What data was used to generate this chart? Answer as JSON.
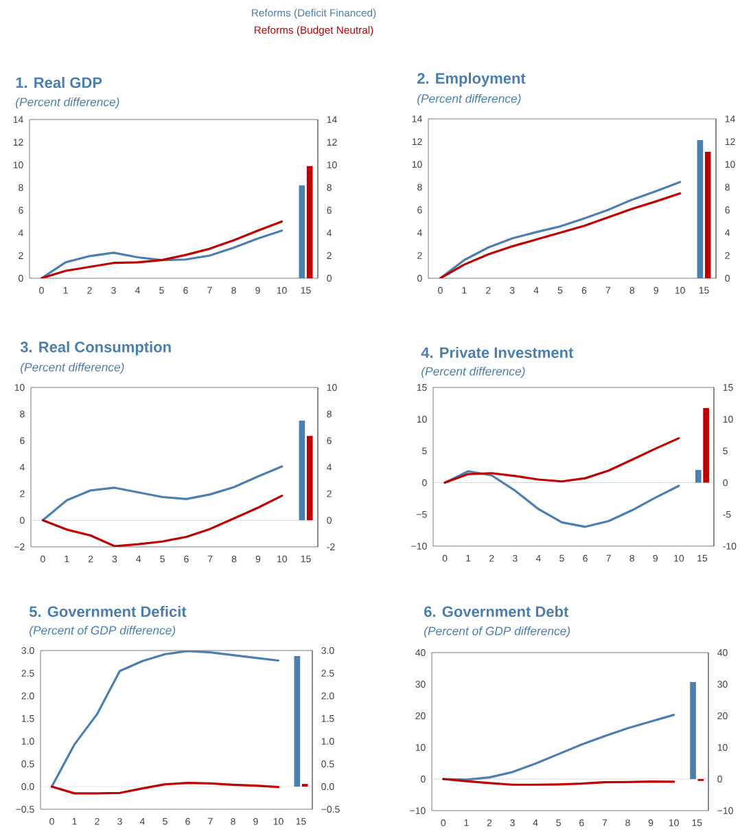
{
  "chart_data": [
    {
      "type": "line",
      "title": "1. Real GDP",
      "subtitle": "(Percent difference)",
      "legend": "top",
      "categories": [
        "0",
        "1",
        "2",
        "3",
        "4",
        "5",
        "6",
        "7",
        "8",
        "9",
        "10",
        "15"
      ],
      "series": [
        {
          "name": "Reforms (Deficit Financed)",
          "color": "#4a7fb0",
          "values": [
            0,
            1.4,
            1.95,
            2.25,
            1.85,
            1.6,
            1.65,
            2.0,
            2.7,
            3.5,
            4.2,
            null
          ]
        },
        {
          "name": "Reforms (Budget Neutral)",
          "color": "#c00000",
          "values": [
            0,
            0.65,
            1.0,
            1.35,
            1.4,
            1.6,
            2.05,
            2.6,
            3.35,
            4.2,
            5.0,
            null
          ]
        },
        {
          "type": "bar",
          "color": "#4a7fb0",
          "values": [
            null,
            null,
            null,
            null,
            null,
            null,
            null,
            null,
            null,
            null,
            null,
            8.2
          ]
        },
        {
          "type": "bar",
          "color": "#c00000",
          "values": [
            null,
            null,
            null,
            null,
            null,
            null,
            null,
            null,
            null,
            null,
            null,
            9.9
          ]
        }
      ],
      "ylim": [
        0,
        14
      ],
      "yticks": [
        0,
        2,
        4,
        6,
        8,
        10,
        12,
        14
      ],
      "y2lim": [
        0,
        14
      ],
      "y2ticks": [
        0,
        2,
        4,
        6,
        8,
        10,
        12,
        14
      ]
    },
    {
      "type": "line",
      "title": "2. Employment",
      "subtitle": "(Percent difference)",
      "categories": [
        "0",
        "1",
        "2",
        "3",
        "4",
        "5",
        "6",
        "7",
        "8",
        "9",
        "10",
        "15"
      ],
      "series": [
        {
          "color": "#4a7fb0",
          "values": [
            0,
            1.6,
            2.7,
            3.5,
            4.05,
            4.55,
            5.25,
            6.0,
            6.9,
            7.65,
            8.45,
            null
          ]
        },
        {
          "color": "#c00000",
          "values": [
            0,
            1.2,
            2.1,
            2.8,
            3.4,
            4.0,
            4.6,
            5.35,
            6.1,
            6.75,
            7.45,
            null
          ]
        },
        {
          "type": "bar",
          "color": "#4a7fb0",
          "values": [
            null,
            null,
            null,
            null,
            null,
            null,
            null,
            null,
            null,
            null,
            null,
            12.15
          ]
        },
        {
          "type": "bar",
          "color": "#c00000",
          "values": [
            null,
            null,
            null,
            null,
            null,
            null,
            null,
            null,
            null,
            null,
            null,
            11.1
          ]
        }
      ],
      "ylim": [
        0,
        14
      ],
      "yticks": [
        0,
        2,
        4,
        6,
        8,
        10,
        12,
        14
      ],
      "y2lim": [
        0,
        14
      ],
      "y2ticks": [
        0,
        2,
        4,
        6,
        8,
        10,
        12,
        14
      ]
    },
    {
      "type": "line",
      "title": "3. Real Consumption",
      "subtitle": "(Percent difference)",
      "categories": [
        "0",
        "1",
        "2",
        "3",
        "4",
        "5",
        "6",
        "7",
        "8",
        "9",
        "10",
        "15"
      ],
      "series": [
        {
          "color": "#4a7fb0",
          "values": [
            0,
            1.5,
            2.25,
            2.45,
            2.1,
            1.75,
            1.6,
            1.95,
            2.5,
            3.3,
            4.05,
            null
          ]
        },
        {
          "color": "#c00000",
          "values": [
            0,
            -0.7,
            -1.15,
            -1.95,
            -1.8,
            -1.6,
            -1.25,
            -0.65,
            0.15,
            0.95,
            1.85,
            null
          ]
        },
        {
          "type": "bar",
          "color": "#4a7fb0",
          "values": [
            null,
            null,
            null,
            null,
            null,
            null,
            null,
            null,
            null,
            null,
            null,
            7.5
          ]
        },
        {
          "type": "bar",
          "color": "#c00000",
          "values": [
            null,
            null,
            null,
            null,
            null,
            null,
            null,
            null,
            null,
            null,
            null,
            6.35
          ]
        }
      ],
      "ylim": [
        -2,
        10
      ],
      "yticks": [
        {
          "value": -2,
          "label": "−2"
        },
        0,
        2,
        4,
        6,
        8,
        10
      ],
      "y2lim": [
        -2,
        10
      ],
      "y2ticks": [
        -2,
        0,
        2,
        4,
        6,
        8,
        10
      ],
      "ref_lines": [
        {
          "axis": "y",
          "value": 0,
          "color": "#d9d9d9"
        }
      ]
    },
    {
      "type": "line",
      "title": "4. Private Investment",
      "subtitle": "(Percent difference)",
      "categories": [
        "0",
        "1",
        "2",
        "3",
        "4",
        "5",
        "6",
        "7",
        "8",
        "9",
        "10",
        "15"
      ],
      "series": [
        {
          "color": "#4a7fb0",
          "values": [
            0,
            1.8,
            1.15,
            -1.25,
            -4.15,
            -6.25,
            -6.95,
            -6.05,
            -4.35,
            -2.35,
            -0.5,
            null
          ]
        },
        {
          "color": "#c00000",
          "values": [
            0,
            1.35,
            1.5,
            1.05,
            0.5,
            0.2,
            0.7,
            1.9,
            3.6,
            5.35,
            7.0,
            null
          ]
        },
        {
          "type": "bar",
          "color": "#4a7fb0",
          "values": [
            null,
            null,
            null,
            null,
            null,
            null,
            null,
            null,
            null,
            null,
            null,
            2.0
          ]
        },
        {
          "type": "bar",
          "color": "#c00000",
          "values": [
            null,
            null,
            null,
            null,
            null,
            null,
            null,
            null,
            null,
            null,
            null,
            11.75
          ]
        }
      ],
      "ylim": [
        -10,
        15
      ],
      "yticks": [
        {
          "value": -10,
          "label": "−10"
        },
        {
          "value": -5,
          "label": "−5"
        },
        0,
        5,
        10,
        15
      ],
      "y2lim": [
        -10,
        15
      ],
      "y2ticks": [
        -10,
        -5,
        0,
        5,
        10,
        15
      ],
      "ref_lines": [
        {
          "axis": "y",
          "value": 0,
          "color": "#d9d9d9"
        }
      ]
    },
    {
      "type": "line",
      "title": "5. Government Deficit",
      "subtitle": "(Percent of GDP difference)",
      "categories": [
        "0",
        "1",
        "2",
        "3",
        "4",
        "5",
        "6",
        "7",
        "8",
        "9",
        "10",
        "15"
      ],
      "series": [
        {
          "color": "#4a7fb0",
          "values": [
            0,
            0.93,
            1.6,
            2.55,
            2.77,
            2.92,
            2.99,
            2.96,
            2.9,
            2.84,
            2.78,
            null
          ]
        },
        {
          "color": "#c00000",
          "values": [
            0,
            -0.15,
            -0.15,
            -0.14,
            -0.04,
            0.05,
            0.08,
            0.07,
            0.04,
            0.02,
            -0.01,
            null
          ]
        },
        {
          "type": "bar",
          "color": "#4a7fb0",
          "values": [
            null,
            null,
            null,
            null,
            null,
            null,
            null,
            null,
            null,
            null,
            null,
            2.88
          ]
        },
        {
          "type": "bar",
          "color": "#c00000",
          "values": [
            null,
            null,
            null,
            null,
            null,
            null,
            null,
            null,
            null,
            null,
            null,
            0.06
          ]
        }
      ],
      "ylim": [
        -0.5,
        3
      ],
      "yticks": [
        {
          "value": -0.5,
          "label": "−0.5"
        },
        {
          "value": 0,
          "label": "0.0"
        },
        0.5,
        {
          "value": 1,
          "label": "1.0"
        },
        1.5,
        {
          "value": 2,
          "label": "2.0"
        },
        2.5,
        {
          "value": 3,
          "label": "3.0"
        }
      ],
      "y2lim": [
        -0.5,
        3
      ],
      "y2ticks": [
        {
          "value": -0.5,
          "label": "−0.5"
        },
        {
          "value": 0,
          "label": "0.0"
        },
        0.5,
        {
          "value": 1,
          "label": "1.0"
        },
        1.5,
        {
          "value": 2,
          "label": "2.0"
        },
        2.5,
        {
          "value": 3,
          "label": "3.0"
        }
      ],
      "ref_lines": [
        {
          "axis": "y",
          "value": 0,
          "color": "#d9d9d9"
        }
      ]
    },
    {
      "type": "line",
      "title": "6. Government Debt",
      "subtitle": "(Percent of GDP difference)",
      "categories": [
        "0",
        "1",
        "2",
        "3",
        "4",
        "5",
        "6",
        "7",
        "8",
        "9",
        "10",
        "15"
      ],
      "series": [
        {
          "color": "#4a7fb0",
          "values": [
            0,
            -0.2,
            0.5,
            2.2,
            4.9,
            7.9,
            10.9,
            13.6,
            16.1,
            18.2,
            20.3,
            null
          ]
        },
        {
          "color": "#c00000",
          "values": [
            0,
            -0.7,
            -1.3,
            -1.8,
            -1.8,
            -1.7,
            -1.45,
            -1.0,
            -0.95,
            -0.8,
            -0.85,
            null
          ]
        },
        {
          "type": "bar",
          "color": "#4a7fb0",
          "values": [
            null,
            null,
            null,
            null,
            null,
            null,
            null,
            null,
            null,
            null,
            null,
            30.7
          ]
        },
        {
          "type": "bar",
          "color": "#c00000",
          "values": [
            null,
            null,
            null,
            null,
            null,
            null,
            null,
            null,
            null,
            null,
            null,
            -0.6
          ]
        }
      ],
      "ylim": [
        -10,
        40
      ],
      "yticks": [
        {
          "value": -10,
          "label": "−10"
        },
        0,
        10,
        20,
        30,
        40
      ],
      "y2lim": [
        -10,
        40
      ],
      "y2ticks": [
        {
          "value": -10,
          "label": "−10"
        },
        0,
        10,
        20,
        30,
        40
      ],
      "ref_lines": [
        {
          "axis": "y",
          "value": 0,
          "color": "#d9d9d9"
        }
      ]
    }
  ]
}
